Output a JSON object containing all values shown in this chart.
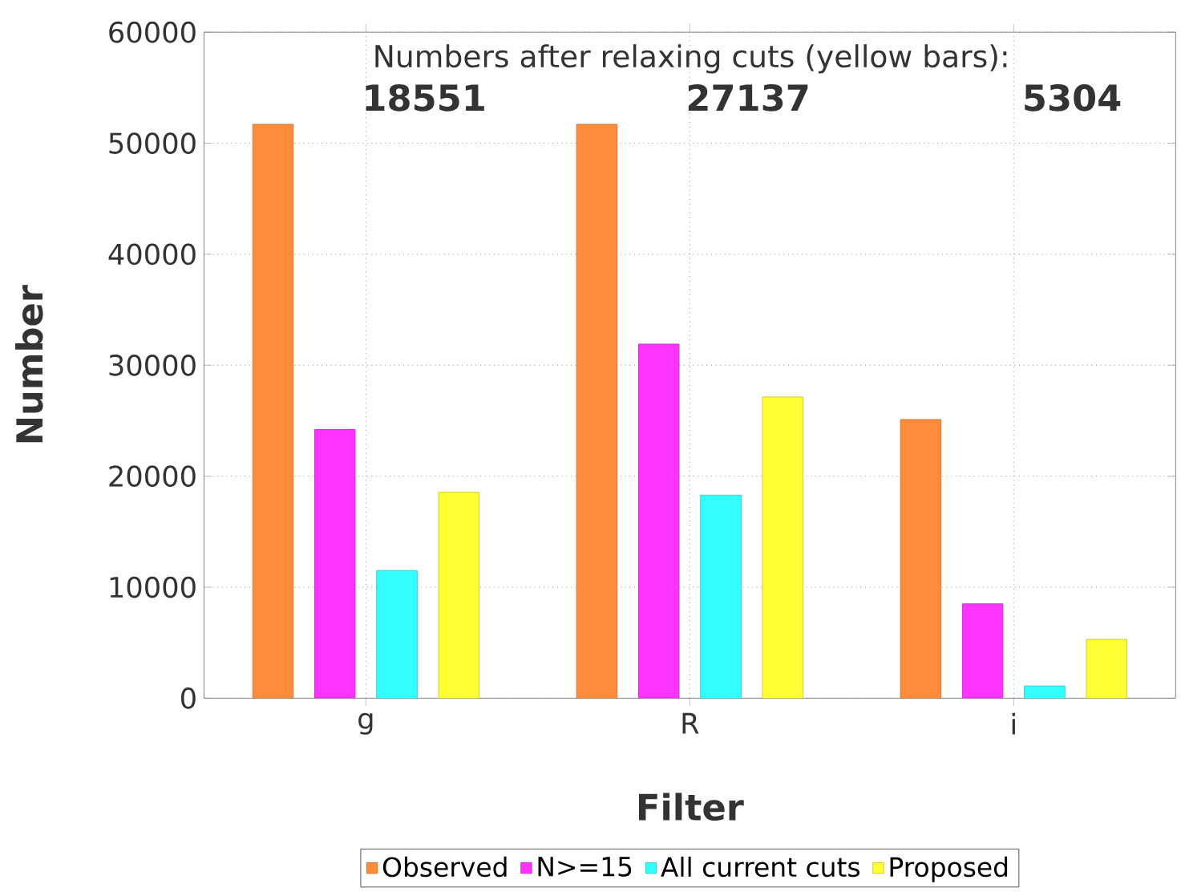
{
  "chart_data": {
    "type": "bar",
    "xlabel": "Filter",
    "ylabel": "Number",
    "categories": [
      "g",
      "R",
      "i"
    ],
    "series": [
      {
        "name": "Observed",
        "color": "#ff8c3a",
        "values": [
          51700,
          51700,
          25100
        ]
      },
      {
        "name": "N>=15",
        "color": "#ff33ff",
        "values": [
          24200,
          31900,
          8500
        ]
      },
      {
        "name": "All current cuts",
        "color": "#33ffff",
        "values": [
          11500,
          18300,
          1100
        ]
      },
      {
        "name": "Proposed",
        "color": "#ffff33",
        "values": [
          18551,
          27137,
          5304
        ]
      }
    ],
    "annotations": [
      "Numbers after relaxing cuts (yellow bars):",
      "18551",
      "27137",
      "5304"
    ],
    "ylim": [
      0,
      60000
    ],
    "yticks": [
      0,
      10000,
      20000,
      30000,
      40000,
      50000,
      60000
    ],
    "grid": true,
    "legend": "bottom"
  }
}
